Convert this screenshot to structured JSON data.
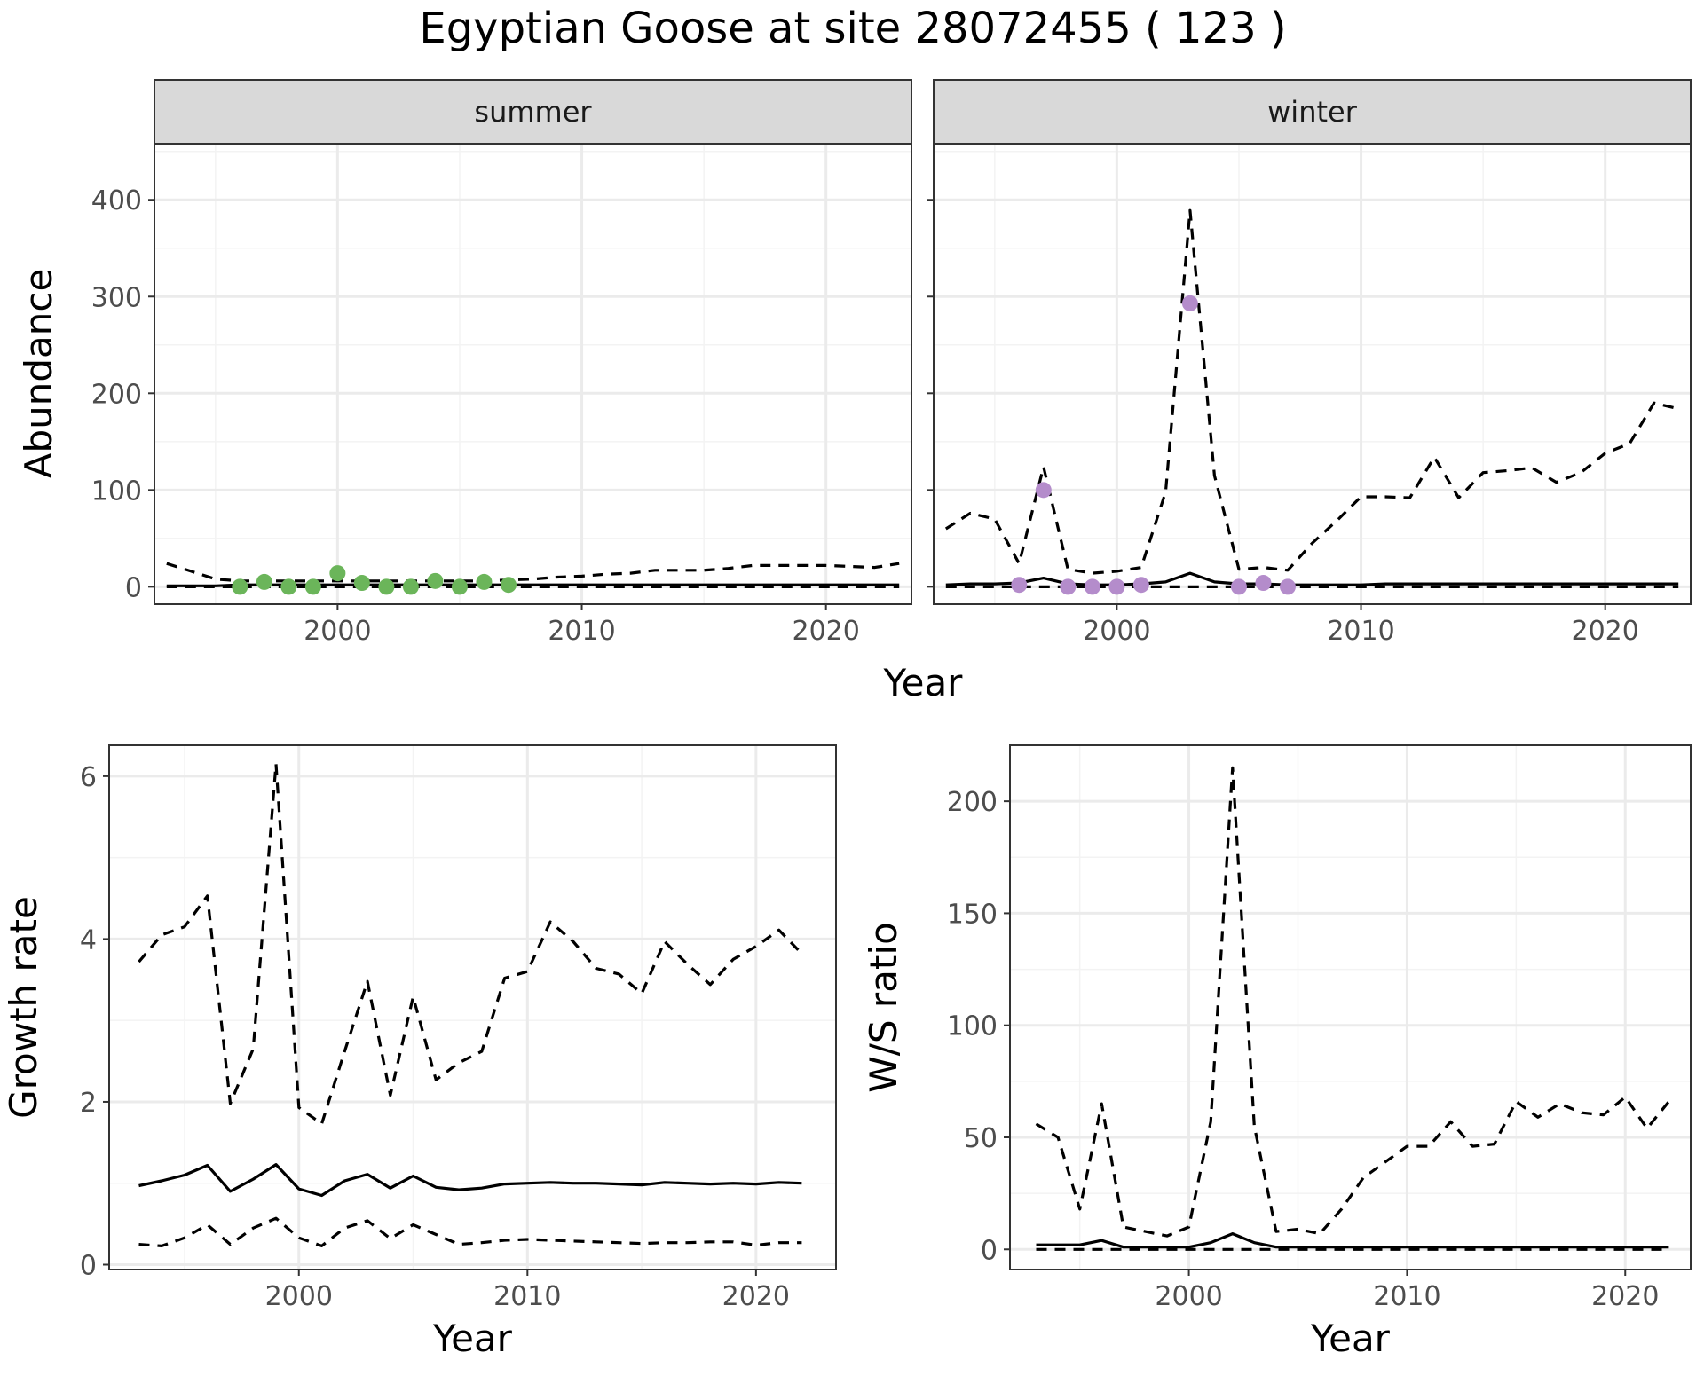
{
  "title": "Egyptian Goose at site 28072455 ( 123 )",
  "colors": {
    "summer_points": "#6bb55a",
    "winter_points": "#b48ccb",
    "strip_bg": "#d9d9d9",
    "lines": "#000000"
  },
  "chart_data": [
    {
      "id": "abundance",
      "type": "line",
      "facets": [
        "summer",
        "winter"
      ],
      "xlabel": "Year",
      "ylabel": "Abundance",
      "xlim": [
        1992.5,
        2023.5
      ],
      "ylim": [
        -18,
        458
      ],
      "xticks": [
        2000,
        2010,
        2020
      ],
      "yticks": [
        0,
        100,
        200,
        300,
        400
      ],
      "grid": true,
      "x": [
        1993,
        1994,
        1995,
        1996,
        1997,
        1998,
        1999,
        2000,
        2001,
        2002,
        2003,
        2004,
        2005,
        2006,
        2007,
        2008,
        2009,
        2010,
        2011,
        2012,
        2013,
        2014,
        2015,
        2016,
        2017,
        2018,
        2019,
        2020,
        2021,
        2022,
        2023
      ],
      "panels": [
        {
          "facet": "summer",
          "point_color": "#6bb55a",
          "estimate": [
            1,
            1,
            1,
            2,
            2,
            2,
            2,
            2,
            2,
            2,
            2,
            2,
            2,
            2,
            2,
            2,
            2,
            2,
            2,
            2,
            2,
            2,
            2,
            2,
            2,
            2,
            2,
            2,
            2,
            2,
            2
          ],
          "upper": [
            24,
            16,
            8,
            6,
            6,
            6,
            6,
            6,
            6,
            6,
            6,
            6,
            6,
            6,
            7,
            8,
            10,
            11,
            13,
            14,
            17,
            17,
            17,
            19,
            22,
            22,
            22,
            22,
            21,
            20,
            24
          ],
          "lower": [
            0,
            0,
            0,
            0,
            0,
            0,
            0,
            0,
            0,
            0,
            0,
            0,
            0,
            0,
            0,
            0,
            0,
            0,
            0,
            0,
            0,
            0,
            0,
            0,
            0,
            0,
            0,
            0,
            0,
            0,
            0
          ],
          "observed": [
            {
              "x": 1996,
              "y": 0
            },
            {
              "x": 1997,
              "y": 5
            },
            {
              "x": 1998,
              "y": 0
            },
            {
              "x": 1999,
              "y": 0
            },
            {
              "x": 2000,
              "y": 14
            },
            {
              "x": 2001,
              "y": 4
            },
            {
              "x": 2002,
              "y": 0
            },
            {
              "x": 2003,
              "y": 0
            },
            {
              "x": 2004,
              "y": 6
            },
            {
              "x": 2005,
              "y": 0
            },
            {
              "x": 2006,
              "y": 5
            },
            {
              "x": 2007,
              "y": 2
            }
          ]
        },
        {
          "facet": "winter",
          "point_color": "#b48ccb",
          "estimate": [
            2,
            3,
            3,
            4,
            9,
            3,
            2,
            2,
            3,
            5,
            14,
            5,
            3,
            3,
            2,
            2,
            2,
            2,
            3,
            3,
            3,
            3,
            3,
            3,
            3,
            3,
            3,
            3,
            3,
            3,
            3
          ],
          "upper": [
            60,
            76,
            70,
            24,
            124,
            18,
            14,
            16,
            20,
            98,
            389,
            115,
            18,
            20,
            17,
            45,
            68,
            93,
            93,
            92,
            134,
            92,
            118,
            120,
            123,
            108,
            118,
            138,
            148,
            190,
            184
          ],
          "lower": [
            0,
            0,
            0,
            0,
            0,
            0,
            0,
            0,
            0,
            0,
            0,
            0,
            0,
            0,
            0,
            0,
            0,
            0,
            0,
            0,
            0,
            0,
            0,
            0,
            0,
            0,
            0,
            0,
            0,
            0,
            0
          ],
          "observed": [
            {
              "x": 1996,
              "y": 2
            },
            {
              "x": 1997,
              "y": 100
            },
            {
              "x": 1998,
              "y": 0
            },
            {
              "x": 1999,
              "y": 0
            },
            {
              "x": 2000,
              "y": 0
            },
            {
              "x": 2001,
              "y": 2
            },
            {
              "x": 2003,
              "y": 293
            },
            {
              "x": 2005,
              "y": 0
            },
            {
              "x": 2006,
              "y": 4
            },
            {
              "x": 2007,
              "y": 0
            }
          ]
        }
      ]
    },
    {
      "id": "growth",
      "type": "line",
      "xlabel": "Year",
      "ylabel": "Growth rate",
      "xlim": [
        1991.7,
        2023.5
      ],
      "ylim": [
        -0.06,
        6.38
      ],
      "xticks": [
        2000,
        2010,
        2020
      ],
      "yticks": [
        0,
        2,
        4,
        6
      ],
      "grid": true,
      "x": [
        1993,
        1994,
        1995,
        1996,
        1997,
        1998,
        1999,
        2000,
        2001,
        2002,
        2003,
        2004,
        2005,
        2006,
        2007,
        2008,
        2009,
        2010,
        2011,
        2012,
        2013,
        2014,
        2015,
        2016,
        2017,
        2018,
        2019,
        2020,
        2021,
        2022
      ],
      "estimate": [
        0.97,
        1.03,
        1.1,
        1.22,
        0.9,
        1.05,
        1.23,
        0.93,
        0.85,
        1.03,
        1.11,
        0.94,
        1.09,
        0.95,
        0.92,
        0.94,
        0.99,
        1.0,
        1.01,
        1.0,
        1.0,
        0.99,
        0.98,
        1.01,
        1.0,
        0.99,
        1.0,
        0.99,
        1.01,
        1.0
      ],
      "upper": [
        3.72,
        4.05,
        4.15,
        4.53,
        1.98,
        2.65,
        6.15,
        1.93,
        1.73,
        2.62,
        3.48,
        2.08,
        3.29,
        2.27,
        2.48,
        2.62,
        3.52,
        3.6,
        4.21,
        3.97,
        3.64,
        3.57,
        3.33,
        3.97,
        3.69,
        3.44,
        3.75,
        3.91,
        4.11,
        3.82
      ],
      "lower": [
        0.25,
        0.23,
        0.33,
        0.49,
        0.25,
        0.45,
        0.57,
        0.33,
        0.23,
        0.45,
        0.54,
        0.32,
        0.49,
        0.37,
        0.25,
        0.27,
        0.3,
        0.31,
        0.3,
        0.29,
        0.28,
        0.27,
        0.26,
        0.27,
        0.27,
        0.28,
        0.28,
        0.24,
        0.27,
        0.27
      ]
    },
    {
      "id": "ws_ratio",
      "type": "line",
      "xlabel": "Year",
      "ylabel": "W/S ratio",
      "xlim": [
        1991.8,
        2023
      ],
      "ylim": [
        -9,
        225
      ],
      "xticks": [
        2000,
        2010,
        2020
      ],
      "yticks": [
        0,
        50,
        100,
        150,
        200
      ],
      "grid": true,
      "x": [
        1993,
        1994,
        1995,
        1996,
        1997,
        1998,
        1999,
        2000,
        2001,
        2002,
        2003,
        2004,
        2005,
        2006,
        2007,
        2008,
        2009,
        2010,
        2011,
        2012,
        2013,
        2014,
        2015,
        2016,
        2017,
        2018,
        2019,
        2020,
        2021,
        2022
      ],
      "estimate": [
        2,
        2,
        2,
        4,
        1,
        1,
        1,
        1,
        3,
        7,
        3,
        1,
        1,
        1,
        1,
        1,
        1,
        1,
        1,
        1,
        1,
        1,
        1,
        1,
        1,
        1,
        1,
        1,
        1,
        1
      ],
      "upper": [
        56,
        50,
        18,
        65,
        10,
        8,
        6,
        10,
        57,
        215,
        55,
        8,
        9,
        7,
        18,
        32,
        39,
        46,
        46,
        57,
        46,
        47,
        66,
        59,
        65,
        61,
        60,
        68,
        54,
        66
      ],
      "lower": [
        0,
        0,
        0,
        0,
        0,
        0,
        0,
        0,
        0,
        0,
        0,
        0,
        0,
        0,
        0,
        0,
        0,
        0,
        0,
        0,
        0,
        0,
        0,
        0,
        0,
        0,
        0,
        0,
        0,
        0
      ]
    }
  ]
}
